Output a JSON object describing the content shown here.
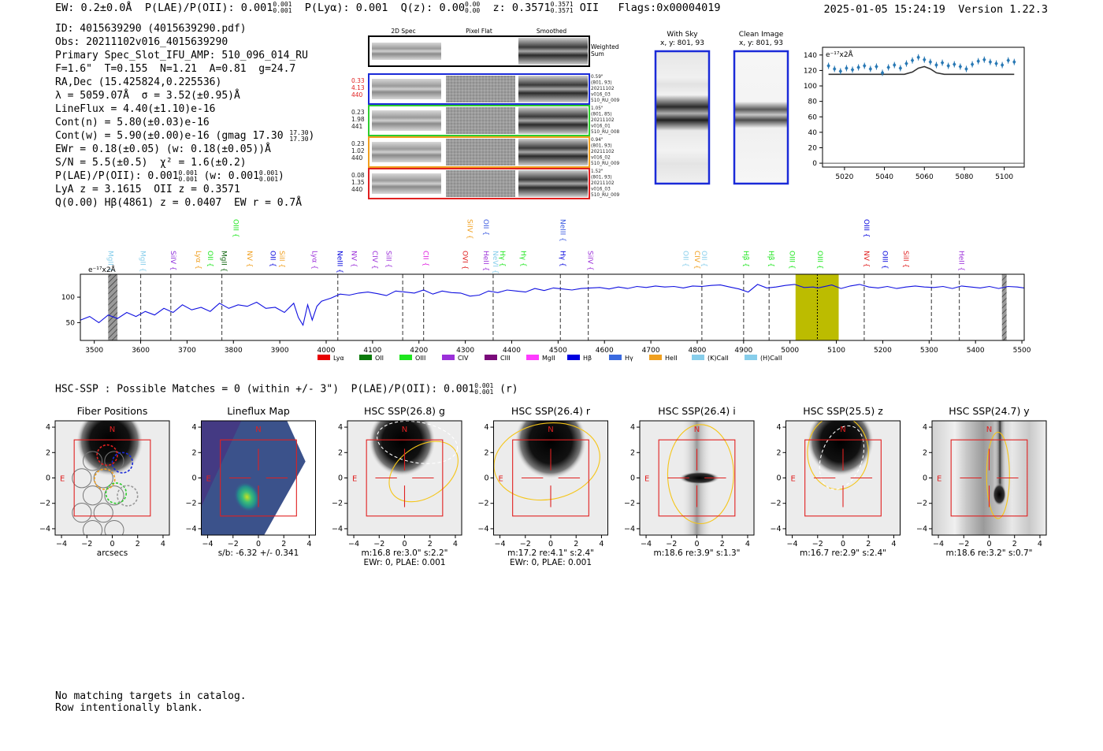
{
  "header": {
    "ew": "EW: 0.2±0.0Å",
    "plae_label": "P(LAE)/P(OII): 0.001",
    "plae_hi": "0.001",
    "plae_lo": "0.001",
    "plya": "P(Lyα): 0.001",
    "qz_label": "Q(z): 0.00",
    "qz_hi": "0.00",
    "qz_lo": "0.00",
    "z_label": "z: 0.3571",
    "z_hi": "0.3571",
    "z_lo": "0.3571",
    "z_line": "OII",
    "flags": "Flags:0x00004019",
    "timestamp": "2025-01-05 15:24:19",
    "version": "Version 1.22.3"
  },
  "info": {
    "id": "ID: 4015639290 (4015639290.pdf)",
    "obs": "Obs: 20211102v016_4015639290",
    "primary": "Primary Spec_Slot_IFU_AMP: 510_096_014_RU",
    "fit": "F=1.6\"  T=0.155  N=1.21  A=0.81  g=24.7",
    "radec": "RA,Dec (15.425824,0.225536)",
    "lambda": "λ = 5059.07Å  σ = 3.52(±0.95)Å",
    "lineflux": "LineFlux = 4.40(±1.10)e-16",
    "contn": "Cont(n) = 5.80(±0.03)e-16",
    "contw": "Cont(w) = 5.90(±0.00)e-16 (gmag 17.30",
    "contw_hi": "17.30",
    "contw_lo": "17.30",
    "ewr": "EWr = 0.18(±0.05) (w: 0.18(±0.05))Å",
    "sn": "S/N = 5.5(±0.5)  χ² = 1.6(±0.2)",
    "plae": "P(LAE)/P(OII): 0.001",
    "plae_hi": "0.001",
    "plae_lo": "0.001",
    "plae_w": "(w: 0.001",
    "plae_w_hi": "0.001",
    "plae_w_lo": "0.001",
    "lya_oii": "LyA z = 3.1615  OII z = 0.3571",
    "q_hbeta": "Q(0.00) Hβ(4861) z = 0.0407  EW r = 0.7Å"
  },
  "spec2d": {
    "col_headers": [
      "2D Spec",
      "Pixel Flat",
      "Smoothed"
    ],
    "weighted_label": [
      "Weighted",
      "Sum"
    ],
    "rows": [
      {
        "color": "#1a2ad8",
        "left": [
          "0.33",
          "4.13",
          "440"
        ],
        "left_color": "#e02020",
        "right": [
          "0.59\"",
          "(801, 93)",
          "20211102",
          "v016_03",
          "510_RU_009"
        ]
      },
      {
        "color": "#2ecc2e",
        "left": [
          "0.23",
          "1.98",
          "441"
        ],
        "left_color": "#222222",
        "right": [
          "1.05\"",
          "(801, 85)",
          "20211102",
          "v016_01",
          "510_RU_008"
        ]
      },
      {
        "color": "#f0a020",
        "left": [
          "0.23",
          "1.02",
          "440"
        ],
        "left_color": "#222222",
        "right": [
          "0.94\"",
          "(801, 93)",
          "20211102",
          "v016_02",
          "510_RU_009"
        ]
      },
      {
        "color": "#e02020",
        "left": [
          "0.08",
          "1.35",
          "440"
        ],
        "left_color": "#222222",
        "right": [
          "1.52\"",
          "(801, 93)",
          "20211102",
          "v016_03",
          "510_RU_009"
        ]
      }
    ]
  },
  "sky": {
    "with_sky_title": "With Sky",
    "with_sky_coords": "x, y: 801, 93",
    "clean_title": "Clean Image",
    "clean_coords": "x, y: 801, 93"
  },
  "zoom_chart": {
    "type": "scatter",
    "unit_label": "e⁻¹⁷x2Å",
    "x_ticks": [
      5020,
      5040,
      5060,
      5080,
      5100
    ],
    "y_ticks": [
      0,
      20,
      40,
      60,
      80,
      100,
      120,
      140
    ],
    "xlim": [
      5009,
      5110
    ],
    "ylim": [
      -5,
      150
    ],
    "points_x": [
      5012,
      5015,
      5018,
      5021,
      5024,
      5027,
      5030,
      5033,
      5036,
      5039,
      5042,
      5045,
      5048,
      5051,
      5054,
      5057,
      5060,
      5063,
      5066,
      5069,
      5072,
      5075,
      5078,
      5081,
      5084,
      5087,
      5090,
      5093,
      5096,
      5099,
      5102,
      5105
    ],
    "points_y": [
      126,
      122,
      119,
      123,
      121,
      124,
      126,
      122,
      125,
      117,
      124,
      127,
      123,
      129,
      133,
      137,
      134,
      131,
      127,
      130,
      126,
      128,
      125,
      122,
      128,
      132,
      134,
      131,
      129,
      127,
      133,
      131
    ],
    "model_x": [
      5012,
      5050,
      5054,
      5057,
      5060,
      5063,
      5066,
      5070,
      5105
    ],
    "model_y": [
      115,
      115,
      118,
      123,
      125,
      122,
      117,
      115,
      115
    ]
  },
  "chart_data": {
    "type": "line",
    "unit_label": "e⁻¹⁷x2Å",
    "x_ticks": [
      3500,
      3600,
      3700,
      3800,
      3900,
      4000,
      4100,
      4200,
      4300,
      4400,
      4500,
      4600,
      4700,
      4800,
      4900,
      5000,
      5100,
      5200,
      5300,
      5400,
      5500
    ],
    "y_ticks": [
      50,
      100
    ],
    "xlim": [
      3470,
      5505
    ],
    "ylim": [
      15,
      145
    ],
    "x": [
      3470,
      3490,
      3510,
      3530,
      3550,
      3570,
      3590,
      3610,
      3630,
      3650,
      3670,
      3690,
      3710,
      3730,
      3750,
      3770,
      3790,
      3810,
      3830,
      3850,
      3870,
      3890,
      3910,
      3930,
      3940,
      3950,
      3960,
      3970,
      3980,
      3990,
      4010,
      4030,
      4050,
      4070,
      4090,
      4110,
      4130,
      4150,
      4170,
      4190,
      4210,
      4230,
      4250,
      4270,
      4290,
      4310,
      4330,
      4350,
      4370,
      4390,
      4410,
      4430,
      4450,
      4470,
      4490,
      4510,
      4530,
      4550,
      4570,
      4590,
      4610,
      4630,
      4650,
      4670,
      4690,
      4710,
      4730,
      4750,
      4770,
      4790,
      4810,
      4830,
      4850,
      4870,
      4890,
      4910,
      4930,
      4950,
      4970,
      4990,
      5010,
      5030,
      5050,
      5060,
      5070,
      5090,
      5110,
      5130,
      5150,
      5170,
      5190,
      5210,
      5230,
      5250,
      5270,
      5290,
      5310,
      5330,
      5350,
      5370,
      5390,
      5410,
      5430,
      5450,
      5470,
      5490,
      5505
    ],
    "y": [
      55,
      62,
      50,
      65,
      58,
      70,
      62,
      72,
      65,
      78,
      70,
      85,
      75,
      80,
      72,
      88,
      78,
      85,
      82,
      90,
      78,
      80,
      70,
      88,
      60,
      45,
      85,
      55,
      82,
      92,
      98,
      106,
      104,
      108,
      110,
      107,
      103,
      112,
      110,
      108,
      114,
      106,
      112,
      109,
      108,
      102,
      104,
      112,
      109,
      114,
      112,
      110,
      117,
      113,
      118,
      116,
      114,
      117,
      118,
      119,
      116,
      120,
      117,
      121,
      119,
      122,
      120,
      121,
      118,
      122,
      121,
      123,
      124,
      120,
      116,
      110,
      125,
      118,
      120,
      123,
      125,
      119,
      120,
      118,
      120,
      124,
      117,
      122,
      125,
      120,
      118,
      121,
      117,
      120,
      122,
      120,
      119,
      121,
      117,
      122,
      120,
      118,
      121,
      117,
      121,
      120,
      118
    ],
    "shaded_bands": [
      [
        3530,
        3550
      ],
      [
        5457,
        5467
      ]
    ],
    "highlight_band": [
      5012,
      5105
    ],
    "marker_line": 5059,
    "vlines": [
      3600,
      3665,
      3775,
      4025,
      4165,
      4210,
      4360,
      4505,
      4565,
      4810,
      4900,
      4955,
      5160,
      5305,
      5365
    ],
    "line_labels": [
      {
        "w": 3530,
        "name": "MgII",
        "color": "#87ceeb",
        "row": 1
      },
      {
        "w": 3600,
        "name": "MgII",
        "color": "#87ceeb",
        "row": 1
      },
      {
        "w": 3665,
        "name": "SiIV",
        "color": "#8e2fdb",
        "row": 1
      },
      {
        "w": 3720,
        "name": "Lyα",
        "color": "#f0a020",
        "row": 1
      },
      {
        "w": 3745,
        "name": "OII",
        "color": "#1ee61e",
        "row": 1
      },
      {
        "w": 3775,
        "name": "MgII",
        "color": "#116611",
        "row": 1
      },
      {
        "w": 3800,
        "name": "OIII",
        "color": "#1ee61e",
        "row": 0
      },
      {
        "w": 3830,
        "name": "NV",
        "color": "#f0a020",
        "row": 1
      },
      {
        "w": 3880,
        "name": "OII",
        "color": "#0000dd",
        "row": 1
      },
      {
        "w": 3900,
        "name": "SiII",
        "color": "#f0a020",
        "row": 1
      },
      {
        "w": 3970,
        "name": "Lyα",
        "color": "#9b30d9",
        "row": 1
      },
      {
        "w": 4025,
        "name": "NeIII",
        "color": "#0000dd",
        "row": 1
      },
      {
        "w": 4055,
        "name": "NV",
        "color": "#9b30d9",
        "row": 1
      },
      {
        "w": 4100,
        "name": "CIV",
        "color": "#9b30d9",
        "row": 1
      },
      {
        "w": 4130,
        "name": "SiII",
        "color": "#9b30d9",
        "row": 1
      },
      {
        "w": 4210,
        "name": "CII",
        "color": "#e020e0",
        "row": 1
      },
      {
        "w": 4295,
        "name": "OVI",
        "color": "#e02020",
        "row": 1
      },
      {
        "w": 4305,
        "name": "SiIV",
        "color": "#f0a020",
        "row": 0
      },
      {
        "w": 4340,
        "name": "HeII",
        "color": "#9b30d9",
        "row": 1
      },
      {
        "w": 4340,
        "name": "OII",
        "color": "#3a5ae0",
        "row": 0
      },
      {
        "w": 4360,
        "name": "NeVI",
        "color": "#87ceeb",
        "row": 1
      },
      {
        "w": 4375,
        "name": "Hγ",
        "color": "#1ee61e",
        "row": 1
      },
      {
        "w": 4420,
        "name": "Hγ",
        "color": "#1ee61e",
        "row": 1
      },
      {
        "w": 4505,
        "name": "Hγ",
        "color": "#0000dd",
        "row": 1
      },
      {
        "w": 4505,
        "name": "NeIII",
        "color": "#3a5ae0",
        "row": 0
      },
      {
        "w": 4565,
        "name": "SiIV",
        "color": "#9b30d9",
        "row": 1
      },
      {
        "w": 4770,
        "name": "OII",
        "color": "#87ceeb",
        "row": 1
      },
      {
        "w": 4795,
        "name": "CIV",
        "color": "#f0a020",
        "row": 1
      },
      {
        "w": 4810,
        "name": "OII",
        "color": "#87ceeb",
        "row": 1
      },
      {
        "w": 4900,
        "name": "Hβ",
        "color": "#1ee61e",
        "row": 1
      },
      {
        "w": 4955,
        "name": "Hβ",
        "color": "#1ee61e",
        "row": 1
      },
      {
        "w": 5000,
        "name": "OIII",
        "color": "#1ee61e",
        "row": 1
      },
      {
        "w": 5060,
        "name": "OIII",
        "color": "#1ee61e",
        "row": 1
      },
      {
        "w": 5160,
        "name": "NV",
        "color": "#e02020",
        "row": 1
      },
      {
        "w": 5200,
        "name": "OIII",
        "color": "#0000dd",
        "row": 1
      },
      {
        "w": 5160,
        "name": "OIII",
        "color": "#0000dd",
        "row": 0
      },
      {
        "w": 5245,
        "name": "SiII",
        "color": "#e02020",
        "row": 1
      },
      {
        "w": 5365,
        "name": "HeII",
        "color": "#9b30d9",
        "row": 1
      }
    ],
    "legend": [
      {
        "name": "Lyα",
        "color": "#e80000"
      },
      {
        "name": "OII",
        "color": "#0a7a0a"
      },
      {
        "name": "OIII",
        "color": "#1ee61e"
      },
      {
        "name": "CIV",
        "color": "#9b30d9"
      },
      {
        "name": "CIII",
        "color": "#7a0a7a"
      },
      {
        "name": "MgII",
        "color": "#ff3cff"
      },
      {
        "name": "Hβ",
        "color": "#0000e0"
      },
      {
        "name": "Hγ",
        "color": "#3a6ae0"
      },
      {
        "name": "HeII",
        "color": "#f0a020"
      },
      {
        "name": "(K)CaII",
        "color": "#87ceeb"
      },
      {
        "name": "(H)CaII",
        "color": "#87ceeb"
      }
    ]
  },
  "hsc": {
    "title": "HSC-SSP : Possible Matches = 0 (within +/- 3\")  P(LAE)/P(OII): 0.001",
    "title_hi": "0.001",
    "title_lo": "0.001",
    "title_suffix": "(r)",
    "axis_ticks": [
      "−4",
      "−2",
      "0",
      "2",
      "4"
    ],
    "compass_n": "N",
    "compass_e": "E",
    "panels": [
      {
        "title": "Fiber Positions",
        "cap1": "arcsecs",
        "cap2": "",
        "kind": "fiber"
      },
      {
        "title": "Lineflux Map",
        "cap1": "s/b: -6.32 +/- 0.341",
        "cap2": "",
        "kind": "flux"
      },
      {
        "title": "HSC SSP(26.8) g",
        "cap1": "m:16.8  re:3.0\"  s:2.2\"",
        "cap2": "EWr: 0, PLAE: 0.001",
        "kind": "g"
      },
      {
        "title": "HSC SSP(26.4) r",
        "cap1": "m:17.2  re:4.1\"  s:2.4\"",
        "cap2": "EWr: 0, PLAE: 0.001",
        "kind": "r"
      },
      {
        "title": "HSC SSP(26.4) i",
        "cap1": "m:18.6  re:3.9\"  s:1.3\"",
        "cap2": "",
        "kind": "i"
      },
      {
        "title": "HSC SSP(25.5) z",
        "cap1": "m:16.7  re:2.9\"  s:2.4\"",
        "cap2": "",
        "kind": "z"
      },
      {
        "title": "HSC SSP(24.7) y",
        "cap1": "m:18.6  re:3.2\"  s:0.7\"",
        "cap2": "",
        "kind": "y"
      }
    ]
  },
  "footer": {
    "line1": "No matching targets in catalog.",
    "line2": "Row intentionally blank."
  }
}
